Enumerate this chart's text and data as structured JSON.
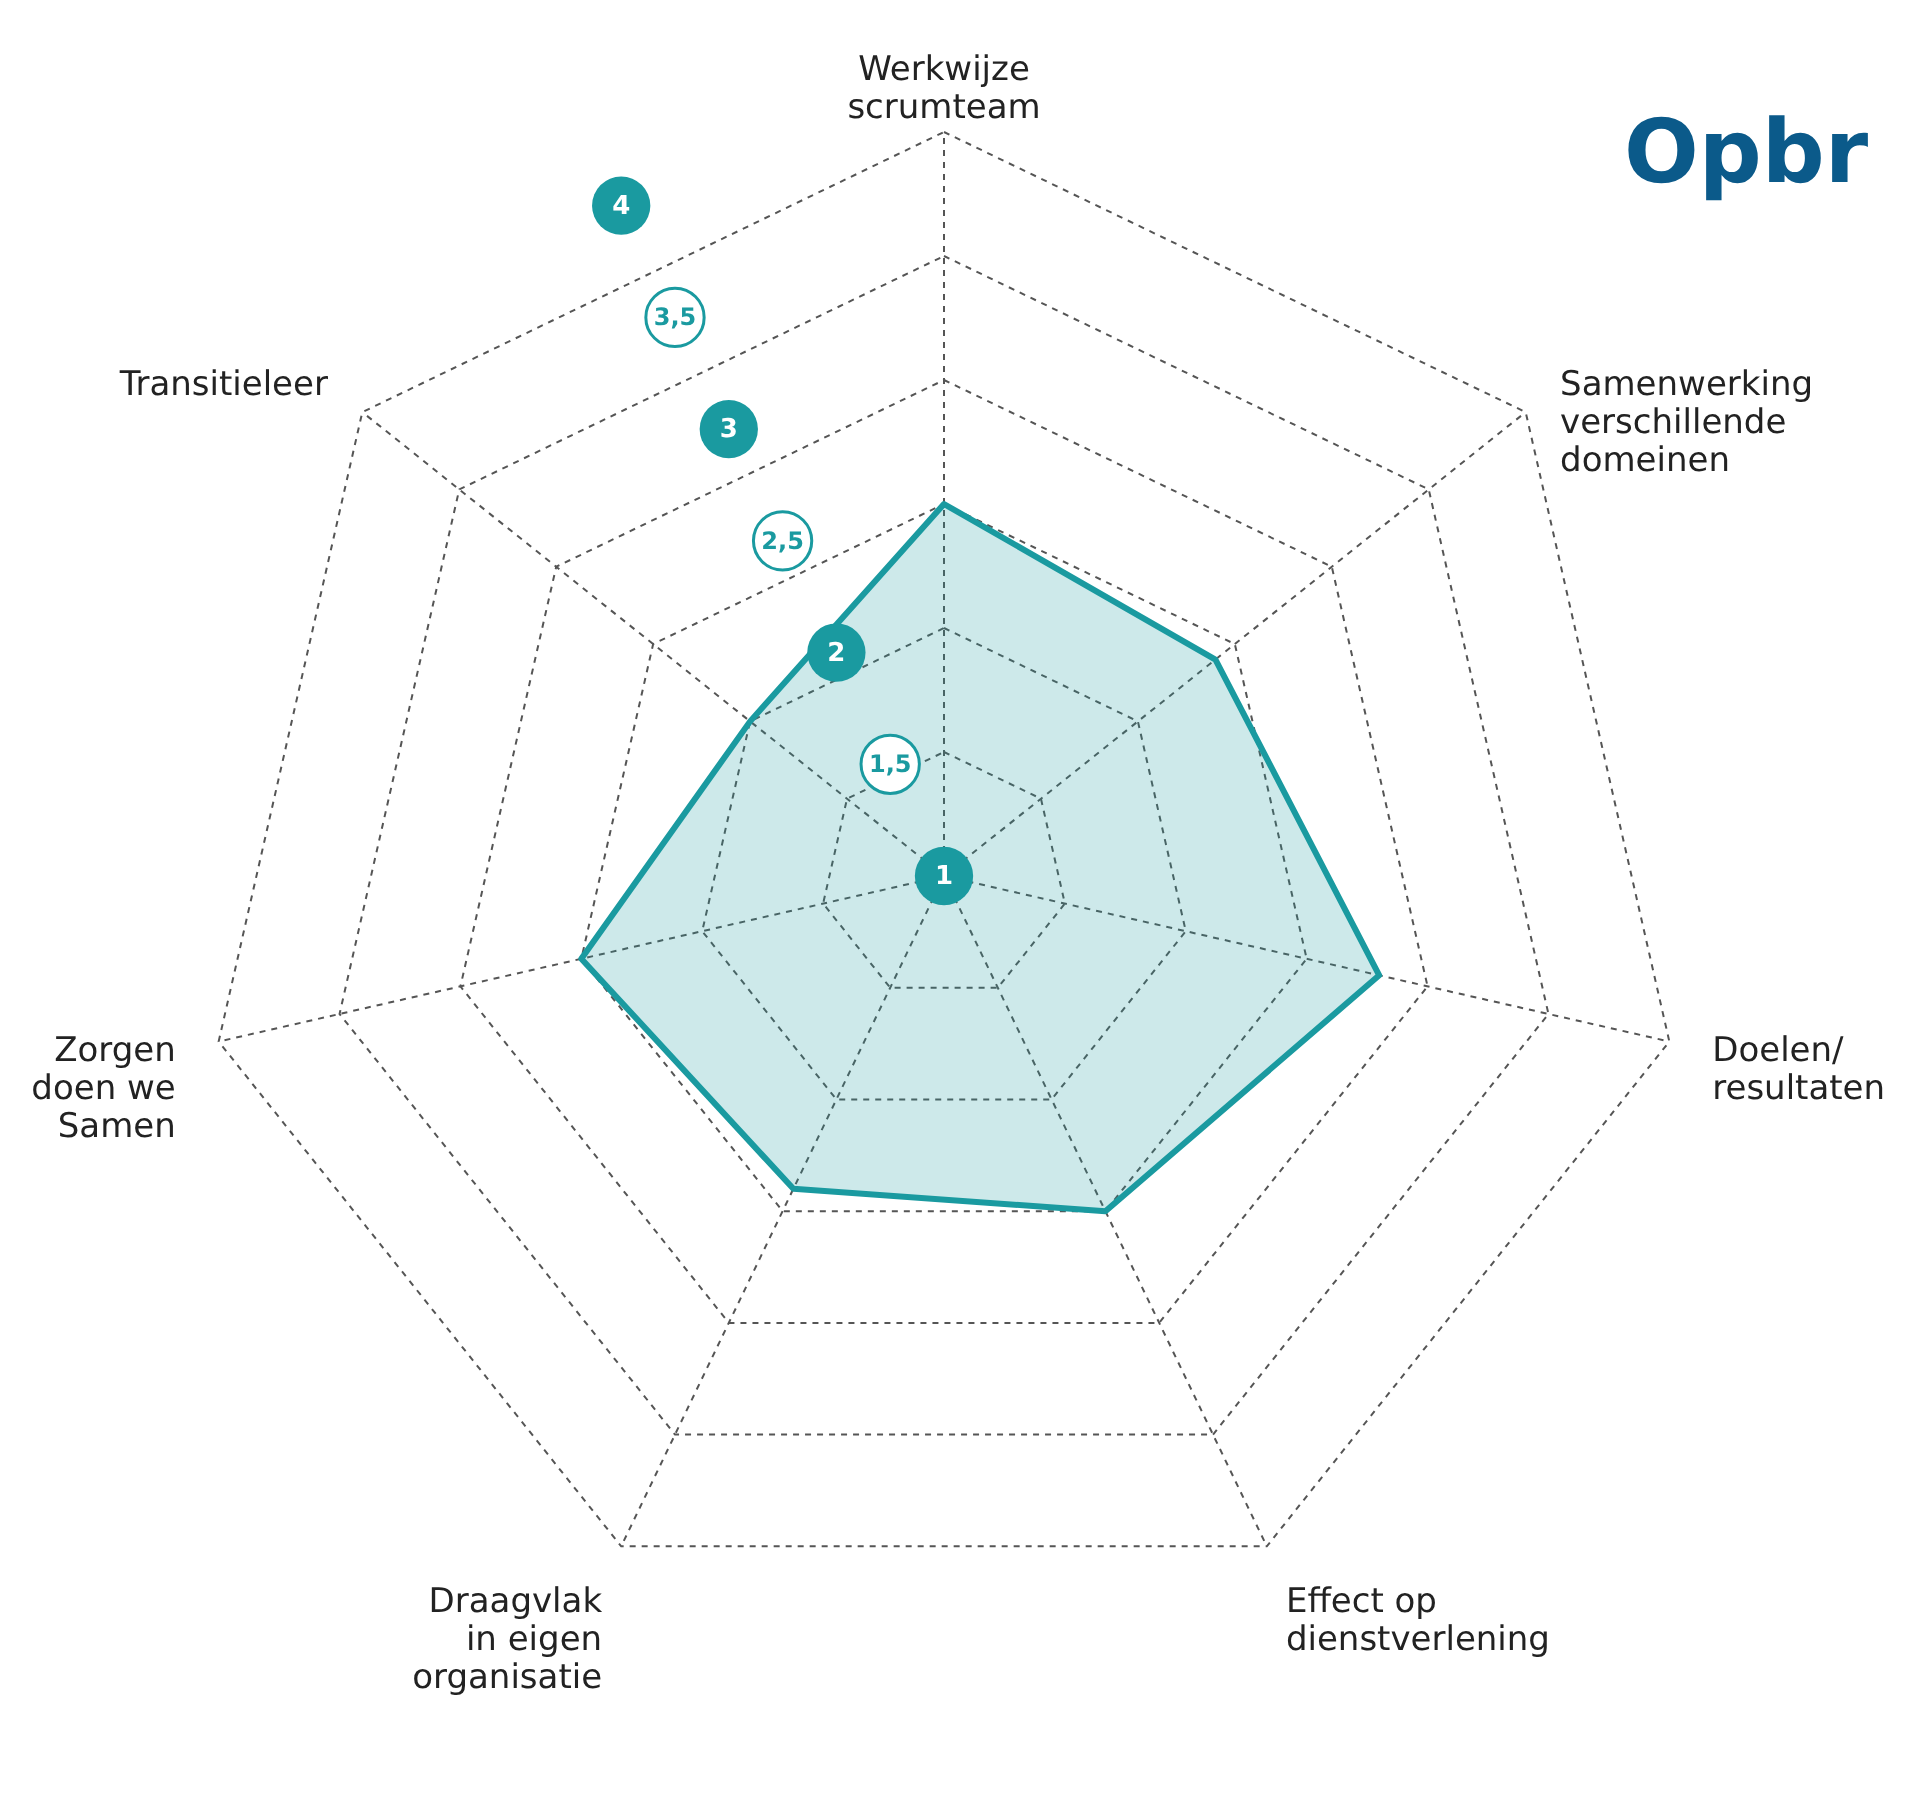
{
  "chart_data": {
    "type": "radar",
    "title": "Opbr",
    "categories": [
      "Werkwijze\nscrumteam",
      "Samenwerking\nverschillende\ndomeinen",
      "Doelen/\nresultaten",
      "Effect op\ndienstverlening",
      "Draagvlak\nin eigen\norganisatie",
      "Zorgen\ndoen we\nSamen",
      "Transitieleer"
    ],
    "series": [
      {
        "color": "#1a9aa0",
        "values": [
          2.5,
          2.4,
          2.8,
          2.5,
          2.4,
          2.5,
          2.0
        ]
      }
    ],
    "ylim": [
      1,
      4
    ],
    "yticks": [
      1,
      {
        "value": 1.5,
        "label": "1,5"
      },
      2,
      {
        "value": 2.5,
        "label": "2,5"
      },
      3,
      {
        "value": 3.5,
        "label": "3,5"
      },
      4
    ],
    "grid": true
  }
}
